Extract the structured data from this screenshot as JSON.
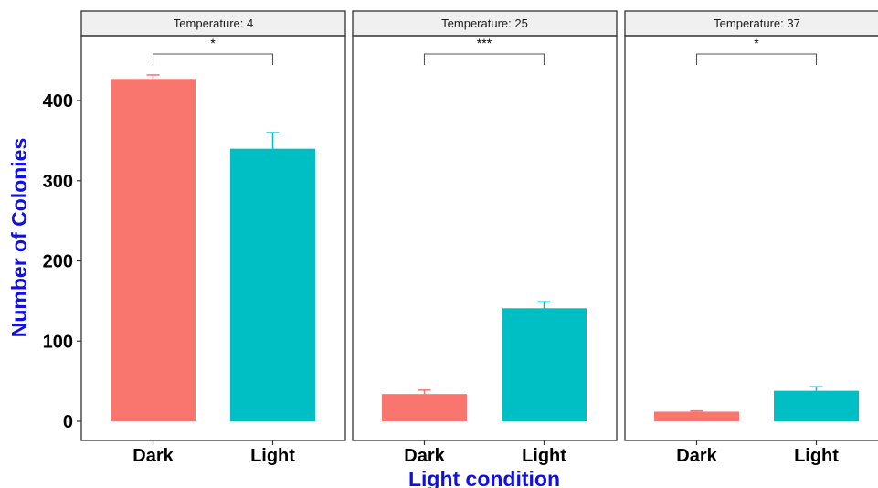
{
  "chart_data": {
    "type": "bar",
    "xlabel": "Light condition",
    "ylabel": "Number of Colonies",
    "ylim": [
      0,
      460
    ],
    "yticks": [
      0,
      100,
      200,
      300,
      400
    ],
    "categories": [
      "Dark",
      "Light"
    ],
    "colors": {
      "Dark": "#F8766D",
      "Light": "#00BFC4",
      "axis_title": "#1010e0"
    },
    "grid": false,
    "facet_label_prefix": "Temperature: ",
    "panels": [
      {
        "strip": "Temperature: 4",
        "values": [
          427,
          340
        ],
        "errors": [
          5,
          20
        ],
        "significance": "*"
      },
      {
        "strip": "Temperature: 25",
        "values": [
          34,
          141
        ],
        "errors": [
          5,
          8
        ],
        "significance": "***"
      },
      {
        "strip": "Temperature: 37",
        "values": [
          12,
          38
        ],
        "errors": [
          1,
          5
        ],
        "significance": "*"
      }
    ]
  }
}
